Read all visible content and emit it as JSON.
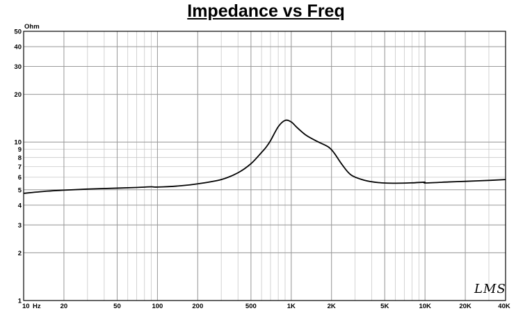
{
  "chart_data": {
    "type": "line",
    "title": "Impedance vs Freq",
    "xlabel": "Hz",
    "ylabel": "Ohm",
    "x_scale": "log",
    "y_scale": "log",
    "xlim": [
      10,
      40000
    ],
    "ylim": [
      1,
      50
    ],
    "grid": true,
    "x_ticks": [
      {
        "v": 10,
        "label": "10"
      },
      {
        "v": 20,
        "label": "20"
      },
      {
        "v": 50,
        "label": "50"
      },
      {
        "v": 100,
        "label": "100"
      },
      {
        "v": 200,
        "label": "200"
      },
      {
        "v": 500,
        "label": "500"
      },
      {
        "v": 1000,
        "label": "1K"
      },
      {
        "v": 2000,
        "label": "2K"
      },
      {
        "v": 5000,
        "label": "5K"
      },
      {
        "v": 10000,
        "label": "10K"
      },
      {
        "v": 20000,
        "label": "20K"
      },
      {
        "v": 40000,
        "label": "40K"
      }
    ],
    "y_ticks": [
      {
        "v": 1,
        "label": "1"
      },
      {
        "v": 2,
        "label": "2"
      },
      {
        "v": 3,
        "label": "3"
      },
      {
        "v": 4,
        "label": "4"
      },
      {
        "v": 5,
        "label": "5"
      },
      {
        "v": 6,
        "label": "6"
      },
      {
        "v": 7,
        "label": "7"
      },
      {
        "v": 8,
        "label": "8"
      },
      {
        "v": 9,
        "label": "9"
      },
      {
        "v": 10,
        "label": "10"
      },
      {
        "v": 20,
        "label": "20"
      },
      {
        "v": 30,
        "label": "30"
      },
      {
        "v": 40,
        "label": "40"
      },
      {
        "v": 50,
        "label": "50"
      }
    ],
    "series": [
      {
        "color": "#000000",
        "x": [
          10,
          15,
          20,
          30,
          50,
          70,
          90,
          100,
          150,
          200,
          300,
          400,
          500,
          600,
          650,
          700,
          800,
          900,
          1000,
          1100,
          1300,
          1600,
          1900,
          2100,
          2400,
          2800,
          3500,
          4500,
          6000,
          8000,
          9900,
          10100,
          15000,
          20000,
          30000,
          40000
        ],
        "y": [
          4.75,
          4.9,
          4.97,
          5.05,
          5.12,
          5.17,
          5.22,
          5.2,
          5.3,
          5.45,
          5.8,
          6.4,
          7.3,
          8.6,
          9.3,
          10.2,
          12.5,
          13.7,
          13.4,
          12.4,
          11.0,
          10.0,
          9.3,
          8.5,
          7.2,
          6.2,
          5.75,
          5.55,
          5.5,
          5.53,
          5.58,
          5.52,
          5.6,
          5.65,
          5.73,
          5.8
        ]
      }
    ]
  },
  "watermark": "LMS"
}
